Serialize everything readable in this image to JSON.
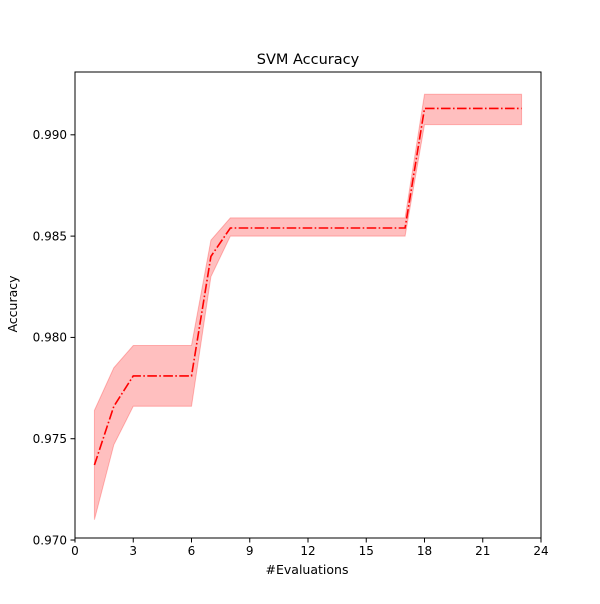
{
  "chart_data": {
    "type": "line",
    "title": "SVM Accuracy",
    "xlabel": "#Evaluations",
    "ylabel": "Accuracy",
    "xlim": [
      0,
      24
    ],
    "ylim": [
      0.9701,
      0.9931
    ],
    "xticks": [
      0,
      3,
      6,
      9,
      12,
      15,
      18,
      21,
      24
    ],
    "xtick_labels": [
      "0",
      "3",
      "6",
      "9",
      "12",
      "15",
      "18",
      "21",
      "24"
    ],
    "yticks": [
      0.97,
      0.975,
      0.98,
      0.985,
      0.99
    ],
    "ytick_labels": [
      "0.970",
      "0.975",
      "0.980",
      "0.985",
      "0.990"
    ],
    "grid": false,
    "series": [
      {
        "x": [
          1,
          2,
          3,
          4,
          5,
          6,
          7,
          8,
          9,
          10,
          11,
          12,
          13,
          14,
          15,
          16,
          17,
          18,
          19,
          20,
          21,
          22,
          23
        ],
        "values": [
          0.9737,
          0.9766,
          0.9781,
          0.9781,
          0.9781,
          0.9781,
          0.984,
          0.9854,
          0.9854,
          0.9854,
          0.9854,
          0.9854,
          0.9854,
          0.9854,
          0.9854,
          0.9854,
          0.9854,
          0.9913,
          0.9913,
          0.9913,
          0.9913,
          0.9913,
          0.9913
        ],
        "lower": [
          0.971,
          0.9747,
          0.9766,
          0.9766,
          0.9766,
          0.9766,
          0.983,
          0.985,
          0.985,
          0.985,
          0.985,
          0.985,
          0.985,
          0.985,
          0.985,
          0.985,
          0.985,
          0.9905,
          0.9905,
          0.9905,
          0.9905,
          0.9905,
          0.9905
        ],
        "upper": [
          0.9764,
          0.9785,
          0.9796,
          0.9796,
          0.9796,
          0.9796,
          0.9848,
          0.9859,
          0.9859,
          0.9859,
          0.9859,
          0.9859,
          0.9859,
          0.9859,
          0.9859,
          0.9859,
          0.9859,
          0.992,
          0.992,
          0.992,
          0.992,
          0.992,
          0.992
        ],
        "color": "#ff0000",
        "band_color": "#ff0000",
        "line_style": "dashdot"
      }
    ]
  }
}
